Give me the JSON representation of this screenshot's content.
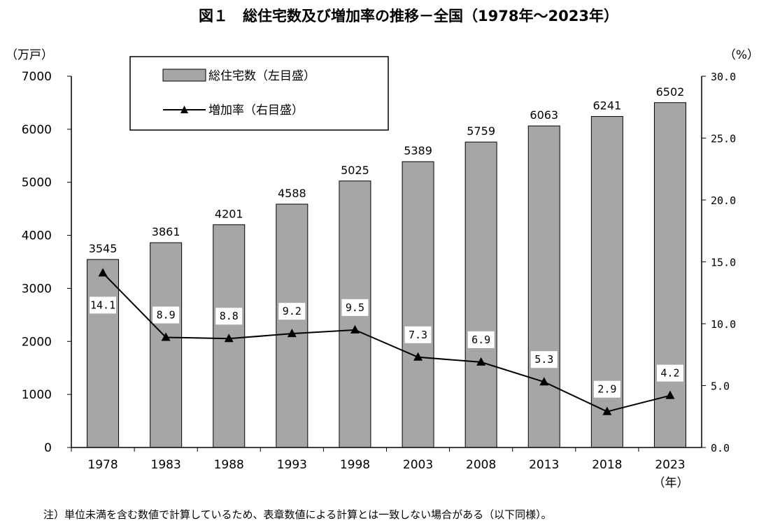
{
  "chart_data": {
    "type": "bar",
    "title": "図１　総住宅数及び増加率の推移－全国（1978年～2023年）",
    "categories": [
      "1978",
      "1983",
      "1988",
      "1993",
      "1998",
      "2003",
      "2008",
      "2013",
      "2018",
      "2023"
    ],
    "series": [
      {
        "name": "総住宅数（左目盛）",
        "type": "bar",
        "axis": "left",
        "color": "#a6a6a6",
        "values": [
          3545,
          3861,
          4201,
          4588,
          5025,
          5389,
          5759,
          6063,
          6241,
          6502
        ]
      },
      {
        "name": "増加率（右目盛）",
        "type": "line",
        "axis": "right",
        "marker": "triangle",
        "color": "#000000",
        "values": [
          14.1,
          8.9,
          8.8,
          9.2,
          9.5,
          7.3,
          6.9,
          5.3,
          2.9,
          4.2
        ]
      }
    ],
    "y_left": {
      "unit": "（万戸）",
      "ylim": [
        0,
        7000
      ],
      "ticks": [
        "0",
        "1000",
        "2000",
        "3000",
        "4000",
        "5000",
        "6000",
        "7000"
      ]
    },
    "y_right": {
      "unit": "（%）",
      "ylim": [
        0,
        30
      ],
      "ticks": [
        "0.0",
        "5.0",
        "10.0",
        "15.0",
        "20.0",
        "25.0",
        "30.0"
      ]
    },
    "x_unit": "（年）",
    "rate_labels": [
      "14.1",
      "8.9",
      "8.8",
      "9.2",
      "9.5",
      "7.3",
      "6.9",
      "5.3",
      "2.9",
      "4.2"
    ],
    "legend_position": "top-left",
    "grid": false
  },
  "note": "注）単位未満を含む数値で計算しているため、表章数値による計算とは一致しない場合がある（以下同様）。"
}
